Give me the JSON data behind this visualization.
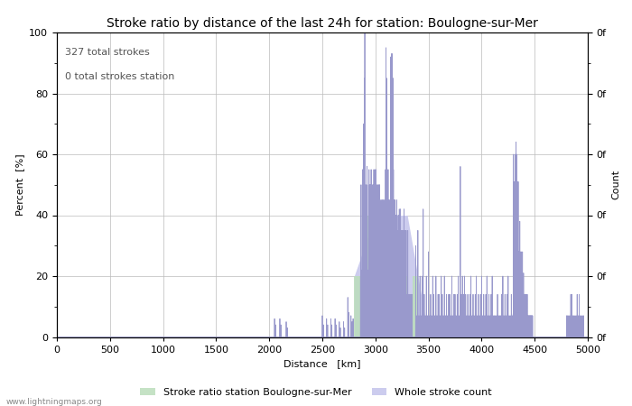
{
  "title": "Stroke ratio by distance of the last 24h for station: Boulogne-sur-Mer",
  "xlabel": "Distance   [km]",
  "ylabel_left": "Percent  [%]",
  "ylabel_right": "Count",
  "annotation_line1": "327 total strokes",
  "annotation_line2": "0 total strokes station",
  "watermark": "www.lightningmaps.org",
  "xlim": [
    0,
    5000
  ],
  "ylim": [
    0,
    100
  ],
  "xticks": [
    0,
    500,
    1000,
    1500,
    2000,
    2500,
    3000,
    3500,
    4000,
    4500,
    5000
  ],
  "yticks_left": [
    0,
    20,
    40,
    60,
    80,
    100
  ],
  "bg_color": "#ffffff",
  "plot_bg_color": "#ffffff",
  "grid_color": "#bbbbbb",
  "line_color": "#9999cc",
  "fill_color_blue": "#ccccee",
  "fill_color_green": "#bbddbb",
  "title_fontsize": 10,
  "label_fontsize": 8,
  "tick_fontsize": 8,
  "legend_label_green": "Stroke ratio station Boulogne-sur-Mer",
  "legend_label_blue": "Whole stroke count"
}
